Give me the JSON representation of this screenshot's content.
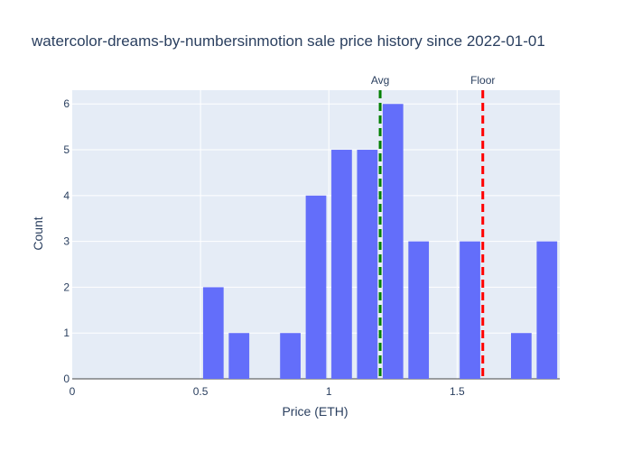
{
  "chart_data": {
    "type": "bar",
    "title": "watercolor-dreams-by-numbersinmotion sale price history since 2022-01-01",
    "xlabel": "Price (ETH)",
    "ylabel": "Count",
    "xlim": [
      0,
      1.9
    ],
    "ylim": [
      0,
      6.3
    ],
    "x_ticks": [
      0,
      0.5,
      1,
      1.5
    ],
    "x_tick_labels": [
      "0",
      "0.5",
      "1",
      "1.5"
    ],
    "y_ticks": [
      0,
      1,
      2,
      3,
      4,
      5,
      6
    ],
    "y_tick_labels": [
      "0",
      "1",
      "2",
      "3",
      "4",
      "5",
      "6"
    ],
    "bin_width": 0.1,
    "bins": [
      {
        "x": 0.55,
        "count": 2
      },
      {
        "x": 0.65,
        "count": 1
      },
      {
        "x": 0.85,
        "count": 1
      },
      {
        "x": 0.95,
        "count": 4
      },
      {
        "x": 1.05,
        "count": 5
      },
      {
        "x": 1.15,
        "count": 5
      },
      {
        "x": 1.25,
        "count": 6
      },
      {
        "x": 1.35,
        "count": 3
      },
      {
        "x": 1.55,
        "count": 3
      },
      {
        "x": 1.75,
        "count": 1
      },
      {
        "x": 1.85,
        "count": 3
      }
    ],
    "bar_color": "#636efa",
    "plot_background": "#e5ecf6",
    "grid": true,
    "reference_lines": [
      {
        "label": "Avg",
        "x": 1.2,
        "color": "#008000"
      },
      {
        "label": "Floor",
        "x": 1.6,
        "color": "#ff0000"
      }
    ]
  }
}
